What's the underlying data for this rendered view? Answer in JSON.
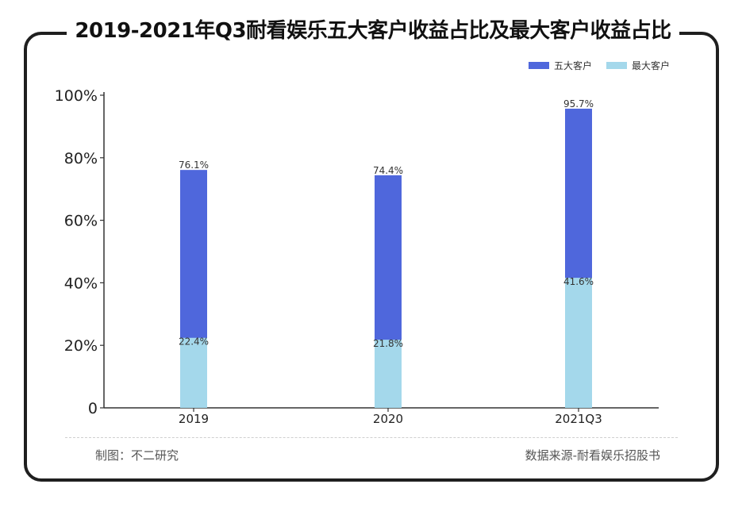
{
  "header": {
    "title": "2019-2021年Q3耐看娱乐五大客户收益占比及最大客户收益占比"
  },
  "footer": {
    "credit": "制图：不二研究",
    "source": "数据来源-耐看娱乐招股书"
  },
  "colors": {
    "top5": "#4f67dc",
    "largest": "#a4d8eb"
  },
  "chart_data": {
    "type": "bar",
    "categories": [
      "2019",
      "2020",
      "2021Q3"
    ],
    "series": [
      {
        "name": "五大客户",
        "values": [
          76.1,
          74.4,
          95.7
        ],
        "labels": [
          "76.1%",
          "74.4%",
          "95.7%"
        ]
      },
      {
        "name": "最大客户",
        "values": [
          22.4,
          21.8,
          41.6
        ],
        "labels": [
          "22.4%",
          "21.8%",
          "41.6%"
        ]
      }
    ],
    "yticks": [
      "0",
      "20%",
      "40%",
      "60%",
      "80%",
      "100%"
    ],
    "ylim": [
      0,
      100
    ],
    "legend_position": "top-right",
    "grid": false
  }
}
